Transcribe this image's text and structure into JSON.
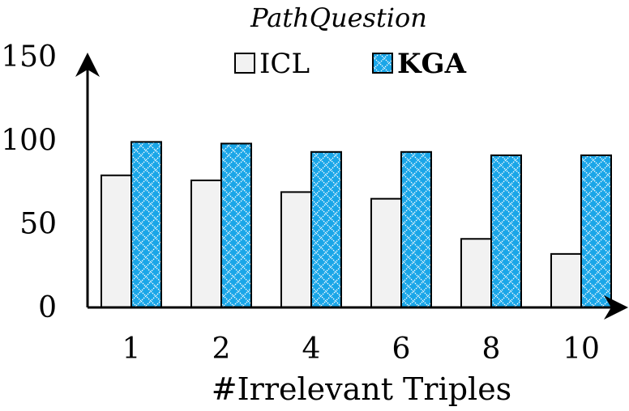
{
  "chart_data": {
    "type": "bar",
    "title": "PathQuestion",
    "xlabel": "#Irrelevant Triples",
    "ylabel": "",
    "categories": [
      "1",
      "2",
      "4",
      "6",
      "8",
      "10"
    ],
    "ylim": [
      0,
      150
    ],
    "yticks": [
      "0",
      "50",
      "100",
      "150"
    ],
    "grid": false,
    "legend_placement": "top-center",
    "series": [
      {
        "name": "ICL",
        "values": [
          79,
          76,
          69,
          65,
          41,
          32
        ],
        "color": "#f2f2f2",
        "pattern": "solid"
      },
      {
        "name": "KGA",
        "values": [
          99,
          98,
          93,
          93,
          91,
          91
        ],
        "color": "#1aa6e8",
        "pattern": "diamond-lattice"
      }
    ]
  }
}
